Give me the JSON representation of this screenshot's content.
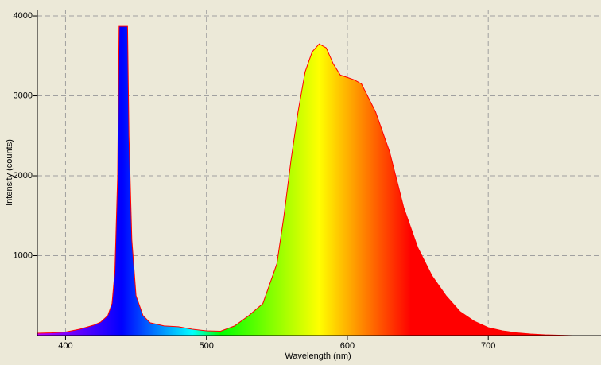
{
  "chart_data": {
    "type": "area",
    "x_label": "Wavelength (nm)",
    "y_label": "Intensity (counts)",
    "x": [
      380,
      390,
      400,
      410,
      420,
      425,
      430,
      433,
      435,
      437,
      438,
      444,
      445,
      447,
      450,
      455,
      460,
      470,
      480,
      490,
      500,
      510,
      520,
      530,
      540,
      550,
      555,
      560,
      565,
      570,
      575,
      580,
      585,
      590,
      595,
      600,
      605,
      610,
      620,
      630,
      640,
      650,
      660,
      670,
      680,
      690,
      700,
      710,
      720,
      730,
      740,
      750,
      760,
      770,
      780
    ],
    "values": [
      30,
      35,
      45,
      80,
      130,
      170,
      250,
      400,
      800,
      2000,
      3870,
      3870,
      2500,
      1200,
      500,
      250,
      160,
      120,
      110,
      80,
      60,
      55,
      120,
      250,
      400,
      900,
      1500,
      2200,
      2800,
      3300,
      3550,
      3650,
      3600,
      3400,
      3260,
      3230,
      3200,
      3150,
      2800,
      2300,
      1600,
      1100,
      750,
      500,
      300,
      180,
      100,
      60,
      35,
      20,
      10,
      5,
      0,
      0,
      0
    ],
    "color": "#ff0000",
    "xlim": [
      380,
      780
    ],
    "ylim": [
      0,
      4080
    ],
    "xticks": [
      400,
      500,
      600,
      700
    ],
    "yticks": [
      1000,
      2000,
      3000,
      4000
    ],
    "grid": true
  }
}
